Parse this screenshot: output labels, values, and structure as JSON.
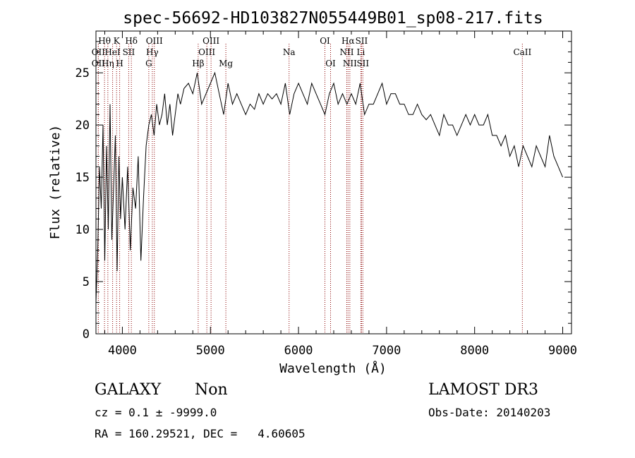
{
  "chart_data": {
    "type": "line",
    "title": "spec-56692-HD103827N055449B01_sp08-217.fits",
    "xlabel": "Wavelength (Å)",
    "ylabel": "Flux (relative)",
    "xlim": [
      3700,
      9100
    ],
    "ylim": [
      0,
      29
    ],
    "x_ticks": [
      4000,
      5000,
      6000,
      7000,
      8000,
      9000
    ],
    "y_ticks": [
      0,
      5,
      10,
      15,
      20,
      25
    ],
    "grid": false,
    "line_color": "#000000",
    "marker_color": "#8b0000",
    "series": [
      {
        "x": [
          3700,
          3720,
          3740,
          3760,
          3780,
          3800,
          3820,
          3840,
          3860,
          3880,
          3900,
          3920,
          3940,
          3960,
          3980,
          4000,
          4030,
          4060,
          4090,
          4120,
          4150,
          4180,
          4210,
          4240,
          4270,
          4300,
          4330,
          4360,
          4390,
          4420,
          4450,
          4480,
          4510,
          4540,
          4570,
          4600,
          4630,
          4660,
          4700,
          4750,
          4800,
          4850,
          4900,
          4950,
          5000,
          5050,
          5100,
          5150,
          5200,
          5250,
          5300,
          5350,
          5400,
          5450,
          5500,
          5550,
          5600,
          5650,
          5700,
          5750,
          5800,
          5850,
          5900,
          5950,
          6000,
          6050,
          6100,
          6150,
          6200,
          6250,
          6300,
          6350,
          6400,
          6450,
          6500,
          6550,
          6600,
          6650,
          6700,
          6750,
          6800,
          6850,
          6900,
          6950,
          7000,
          7050,
          7100,
          7150,
          7200,
          7250,
          7300,
          7350,
          7400,
          7450,
          7500,
          7550,
          7600,
          7650,
          7700,
          7750,
          7800,
          7850,
          7900,
          7950,
          8000,
          8050,
          8100,
          8150,
          8200,
          8250,
          8300,
          8350,
          8400,
          8450,
          8500,
          8550,
          8600,
          8650,
          8700,
          8750,
          8800,
          8850,
          8900,
          8950,
          9000
        ],
        "y": [
          3,
          8,
          16,
          12,
          20,
          7,
          18,
          10,
          22,
          9,
          14,
          19,
          6,
          17,
          11,
          15,
          10,
          16,
          8,
          14,
          12,
          17,
          7,
          13,
          18,
          20,
          21,
          19,
          22,
          20,
          21,
          23,
          20,
          22,
          19,
          21,
          23,
          22,
          23.5,
          24,
          23,
          25,
          22,
          23,
          24,
          25,
          23,
          21,
          24,
          22,
          23,
          22,
          21,
          22,
          21.5,
          23,
          22,
          23,
          22.5,
          23,
          22,
          24,
          21,
          23,
          24,
          23,
          22,
          24,
          23,
          22,
          21,
          23,
          24,
          22,
          23,
          22,
          23,
          22,
          24,
          21,
          22,
          22,
          23,
          24,
          22,
          23,
          23,
          22,
          22,
          21,
          21,
          22,
          21,
          20.5,
          21,
          20,
          19,
          21,
          20,
          20,
          19,
          20,
          21,
          20,
          21,
          20,
          20,
          21,
          19,
          19,
          18,
          19,
          17,
          18,
          16,
          18,
          17,
          16,
          18,
          17,
          16,
          19,
          17,
          16,
          15
        ]
      }
    ],
    "line_markers": [
      {
        "x": 3727,
        "label": "OII",
        "row": 2
      },
      {
        "x": 3727,
        "label": "OII",
        "row": 1
      },
      {
        "x": 3797,
        "label": "Hθ",
        "row": 0
      },
      {
        "x": 3835,
        "label": "Hη",
        "row": 2
      },
      {
        "x": 3889,
        "label": "HeI",
        "row": 1
      },
      {
        "x": 3934,
        "label": "K",
        "row": 0
      },
      {
        "x": 3969,
        "label": "H",
        "row": 2
      },
      {
        "x": 4102,
        "label": "Hδ",
        "row": 0
      },
      {
        "x": 4072,
        "label": "SII",
        "row": 1
      },
      {
        "x": 4300,
        "label": "G",
        "row": 2
      },
      {
        "x": 4340,
        "label": "Hγ",
        "row": 1
      },
      {
        "x": 4363,
        "label": "OIII",
        "row": 0
      },
      {
        "x": 4861,
        "label": "Hβ",
        "row": 2
      },
      {
        "x": 4959,
        "label": "OIII",
        "row": 1
      },
      {
        "x": 5007,
        "label": "OIII",
        "row": 0
      },
      {
        "x": 5175,
        "label": "Mg",
        "row": 2
      },
      {
        "x": 5893,
        "label": "Na",
        "row": 1
      },
      {
        "x": 6300,
        "label": "OI",
        "row": 0
      },
      {
        "x": 6364,
        "label": "OI",
        "row": 2
      },
      {
        "x": 6548,
        "label": "NII",
        "row": 1
      },
      {
        "x": 6563,
        "label": "Hα",
        "row": 0
      },
      {
        "x": 6583,
        "label": "NII",
        "row": 2
      },
      {
        "x": 6708,
        "label": "Li",
        "row": 1
      },
      {
        "x": 6716,
        "label": "SII",
        "row": 0
      },
      {
        "x": 6731,
        "label": "SII",
        "row": 2
      },
      {
        "x": 8542,
        "label": "CaII",
        "row": 1
      }
    ]
  },
  "info": {
    "class_label": "GALAXY",
    "subclass_label": "Non",
    "survey": "LAMOST DR3",
    "cz_text": "cz = 0.1 ± -9999.0",
    "obs_date_text": "Obs-Date: 20140203",
    "radec_text": "RA = 160.29521, DEC =   4.60605"
  }
}
